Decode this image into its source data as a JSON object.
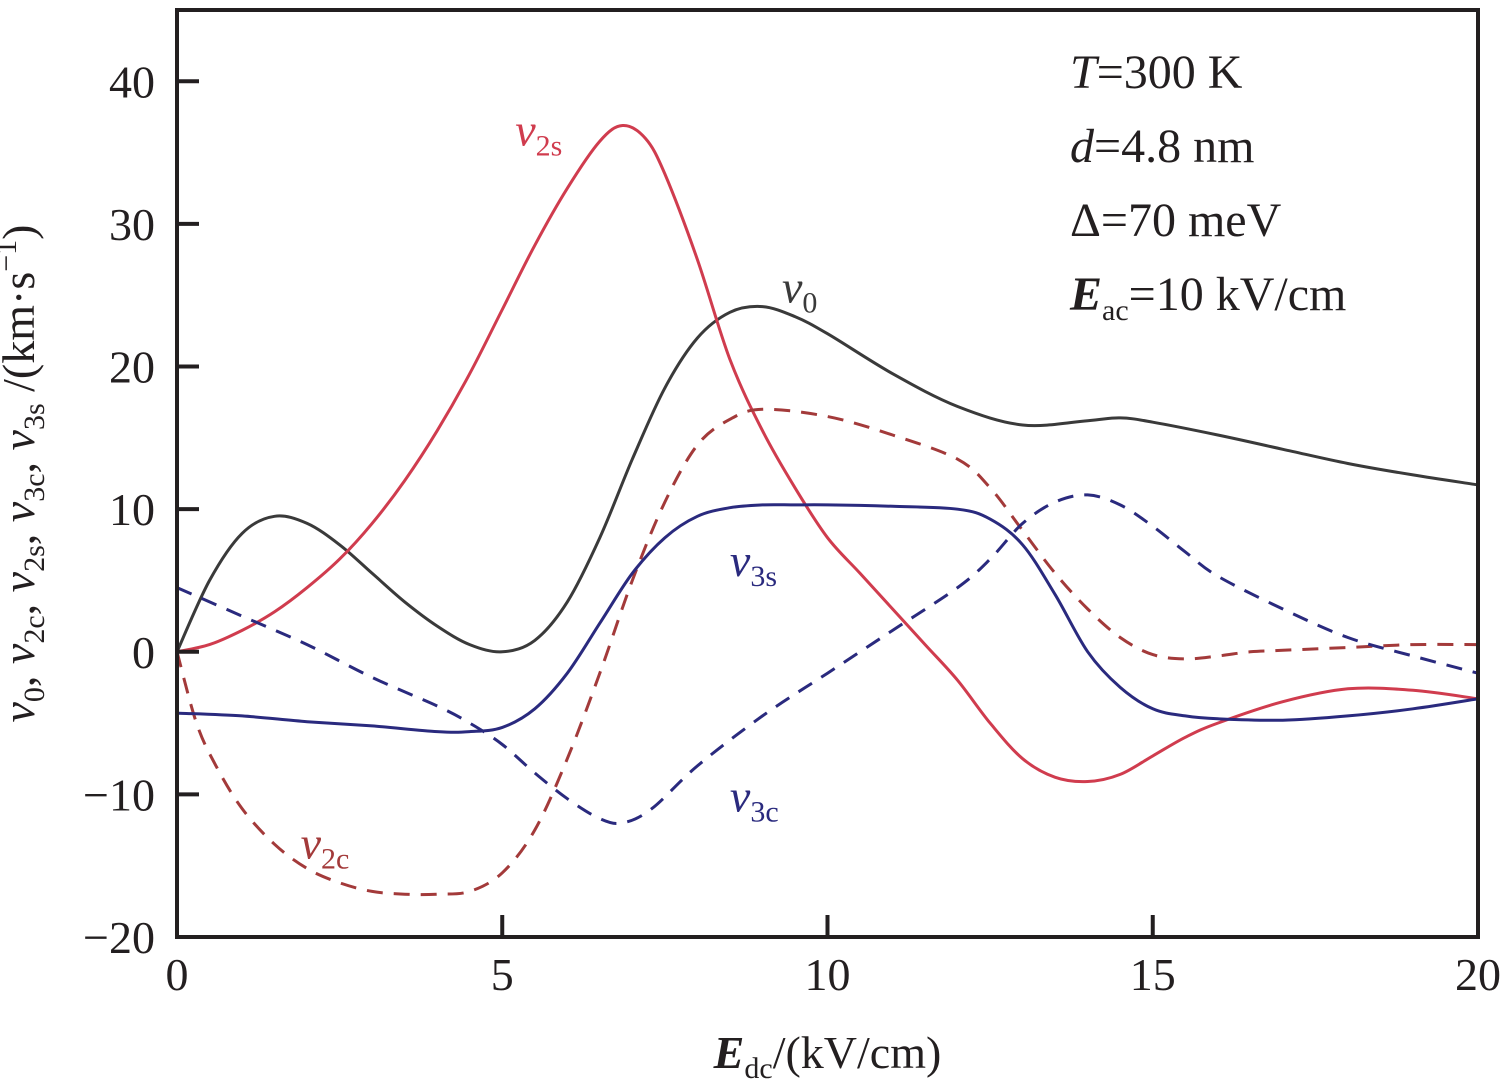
{
  "chart_data": {
    "type": "line",
    "xlabel": {
      "main": "E",
      "sub": "dc",
      "rest": "/(kV/cm)"
    },
    "ylabel": {
      "parts": [
        {
          "var": "v",
          "sub": "0"
        },
        {
          "sep": ", "
        },
        {
          "var": "v",
          "sub": "2c"
        },
        {
          "sep": ", "
        },
        {
          "var": "v",
          "sub": "2s"
        },
        {
          "sep": ", "
        },
        {
          "var": "v",
          "sub": "3c"
        },
        {
          "sep": ", "
        },
        {
          "var": "v",
          "sub": "3s"
        },
        {
          "sep": " /(km·s"
        },
        {
          "sup": "−1"
        },
        {
          "sep": ")"
        }
      ]
    },
    "xlim": [
      0,
      20
    ],
    "ylim": [
      -20,
      45
    ],
    "xticks": [
      0,
      5,
      10,
      15,
      20
    ],
    "xtick_labels": [
      "0",
      "5",
      "10",
      "15",
      "20"
    ],
    "yticks": [
      -20,
      -10,
      0,
      10,
      20,
      30,
      40
    ],
    "ytick_labels": [
      "−20",
      "−10",
      "0",
      "10",
      "20",
      "30",
      "40"
    ],
    "grid": false,
    "legend": "none",
    "parameters": [
      {
        "italic": "T",
        "rest": "=300 K"
      },
      {
        "italic": "d",
        "rest": "=4.8 nm"
      },
      {
        "italic": "",
        "rest": "Δ=70 meV"
      },
      {
        "bold_italic": "E",
        "sub": "ac",
        "rest": "=10 kV/cm"
      }
    ],
    "series": [
      {
        "key": "v0",
        "label_var": "v",
        "label_sub": "0",
        "color": "#3a3a3a",
        "dash": false,
        "label_at": [
          9.3,
          24.5
        ],
        "x": [
          0,
          0.5,
          1,
          1.5,
          2,
          2.5,
          3,
          3.5,
          4,
          4.5,
          5,
          5.5,
          6,
          6.5,
          7,
          7.5,
          8,
          8.5,
          9,
          9.5,
          10,
          11,
          12,
          13,
          14,
          14.5,
          15,
          16,
          17,
          18,
          19,
          20
        ],
        "y": [
          0,
          5,
          8.3,
          9.5,
          9.0,
          7.5,
          5.5,
          3.5,
          1.8,
          0.5,
          0,
          0.8,
          3.5,
          8.0,
          13.5,
          18.5,
          22.0,
          23.8,
          24.2,
          23.5,
          22.3,
          19.5,
          17.2,
          15.9,
          16.2,
          16.4,
          16.1,
          15.2,
          14.2,
          13.2,
          12.4,
          11.7
        ]
      },
      {
        "key": "v2s",
        "label_var": "v",
        "label_sub": "2s",
        "color": "#d03c4e",
        "dash": false,
        "label_at": [
          5.2,
          35.5
        ],
        "x": [
          0,
          0.5,
          1,
          1.5,
          2,
          2.5,
          3,
          3.5,
          4,
          4.5,
          5,
          5.5,
          6,
          6.5,
          6.85,
          7.2,
          7.5,
          8,
          8.5,
          9,
          9.5,
          10,
          10.5,
          11,
          11.5,
          12,
          12.5,
          13,
          13.5,
          14,
          14.5,
          15,
          15.5,
          16,
          17,
          18,
          19,
          20
        ],
        "y": [
          0,
          0.5,
          1.5,
          2.8,
          4.5,
          6.5,
          9.0,
          12.0,
          15.5,
          19.5,
          24.0,
          28.5,
          32.5,
          35.8,
          36.9,
          36.0,
          33.5,
          27.5,
          20.5,
          15.5,
          11.5,
          8.0,
          5.5,
          3.0,
          0.5,
          -2.0,
          -5.0,
          -7.5,
          -8.8,
          -9.1,
          -8.6,
          -7.3,
          -6.0,
          -5.0,
          -3.5,
          -2.6,
          -2.7,
          -3.3
        ]
      },
      {
        "key": "v2c",
        "label_var": "v",
        "label_sub": "2c",
        "color": "#a33a3a",
        "dash": true,
        "label_at": [
          1.9,
          -14.5
        ],
        "x": [
          0,
          0.3,
          0.6,
          1,
          1.5,
          2,
          2.5,
          3,
          3.5,
          4,
          4.5,
          5,
          5.5,
          6,
          6.5,
          7,
          7.5,
          8,
          8.5,
          9,
          10,
          11,
          12,
          12.5,
          13,
          13.5,
          14,
          14.5,
          15,
          15.5,
          16,
          16.5,
          17,
          18,
          19,
          20
        ],
        "y": [
          0,
          -5,
          -8,
          -11,
          -13.5,
          -15.2,
          -16.2,
          -16.8,
          -17,
          -17,
          -16.8,
          -15.5,
          -12.5,
          -7.5,
          -1.5,
          5.0,
          10.5,
          14.5,
          16.3,
          17.0,
          16.5,
          15.2,
          13.5,
          11.5,
          8.5,
          5.5,
          3.0,
          1.0,
          -0.2,
          -0.5,
          -0.3,
          0,
          0.1,
          0.3,
          0.5,
          0.5
        ]
      },
      {
        "key": "v3s",
        "label_var": "v",
        "label_sub": "3s",
        "color": "#2a2a7e",
        "dash": false,
        "label_at": [
          8.5,
          5.3
        ],
        "x": [
          0,
          1,
          2,
          3,
          4,
          4.5,
          5,
          5.5,
          6,
          6.5,
          7,
          7.5,
          8,
          8.5,
          9,
          9.5,
          10,
          11,
          12,
          12.5,
          13,
          13.5,
          14,
          14.5,
          15,
          15.5,
          16,
          17,
          18,
          19,
          20
        ],
        "y": [
          -4.3,
          -4.5,
          -4.9,
          -5.2,
          -5.6,
          -5.6,
          -5.3,
          -4.0,
          -1.5,
          2.0,
          5.5,
          8.0,
          9.5,
          10.1,
          10.3,
          10.3,
          10.3,
          10.2,
          10.0,
          9.3,
          7.5,
          4.0,
          0,
          -2.5,
          -4.0,
          -4.5,
          -4.7,
          -4.8,
          -4.5,
          -4.0,
          -3.3
        ]
      },
      {
        "key": "v3c",
        "label_var": "v",
        "label_sub": "3c",
        "color": "#2a2a7e",
        "dash": true,
        "label_at": [
          8.5,
          -11.2
        ],
        "x": [
          0,
          1,
          2,
          3,
          4,
          4.5,
          5,
          5.5,
          6,
          6.5,
          6.85,
          7.3,
          8,
          9,
          10,
          11,
          12,
          12.5,
          13,
          13.5,
          14,
          14.5,
          15,
          15.5,
          16,
          17,
          18,
          19,
          20
        ],
        "y": [
          4.5,
          2.5,
          0.5,
          -1.8,
          -3.8,
          -5.0,
          -6.5,
          -8.5,
          -10.3,
          -11.7,
          -12.0,
          -11.0,
          -8.0,
          -4.5,
          -1.5,
          1.5,
          4.5,
          6.5,
          9.0,
          10.5,
          11.0,
          10.3,
          8.8,
          7.0,
          5.3,
          3.0,
          1.0,
          -0.3,
          -1.5
        ]
      }
    ]
  }
}
